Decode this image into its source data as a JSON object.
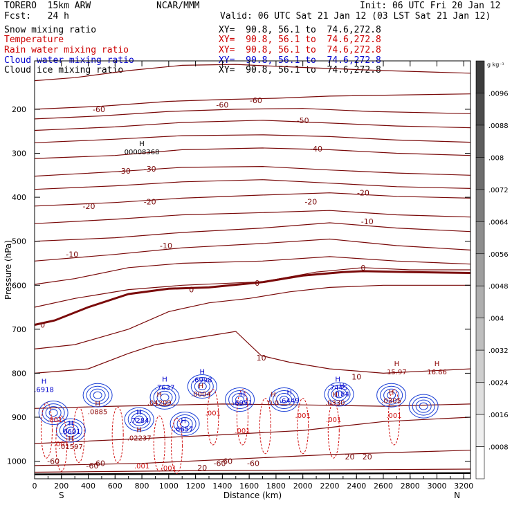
{
  "header": {
    "model": "TORERO  15km ARW",
    "center": "NCAR/MMM",
    "init": "Init: 06 UTC Fri 20 Jan 12",
    "fcst": "Fcst:   24 h",
    "valid": "Valid: 06 UTC Sat 21 Jan 12 (03 LST Sat 21 Jan 12)"
  },
  "fields": [
    {
      "name": "Snow mixing ratio",
      "xy": "",
      "color": "#000000"
    },
    {
      "name": "Temperature",
      "xy": "XY=  90.8, 56.1 to  74.6,272.8",
      "color": "#cc0000"
    },
    {
      "name": "Rain water mixing ratio",
      "xy": "XY=  90.8, 56.1 to  74.6,272.8",
      "color": "#cc0000"
    },
    {
      "name": "Cloud water mixing ratio",
      "xy": "XY=  90.8, 56.1 to  74.6,272.8",
      "color": "#0000cc"
    },
    {
      "name": "Cloud ice mixing ratio",
      "xy": "XY=  90.8, 56.1 to  74.6,272.8",
      "color": "#000000"
    }
  ],
  "first_xy": "XY=  90.8, 56.1 to  74.6,272.8",
  "chart_data": {
    "type": "contour cross-section",
    "xlabel": "Distance (km)",
    "ylabel": "Pressure (hPa)",
    "xlim": [
      0,
      3250
    ],
    "ylim": [
      1040,
      90
    ],
    "x_ticks": [
      "0",
      "200",
      "400",
      "600",
      "800",
      "1000",
      "1200",
      "1400",
      "1600",
      "1800",
      "2000",
      "2200",
      "2400",
      "2600",
      "2800",
      "3000",
      "3200"
    ],
    "y_ticks": [
      "200",
      "300",
      "400",
      "500",
      "600",
      "700",
      "800",
      "900",
      "1000"
    ],
    "end_labels": {
      "left": "S",
      "right": "N"
    },
    "colorbar": {
      "unit": "g kg⁻¹",
      "ticks": [
        ".0096",
        ".0088",
        ".008",
        ".0072",
        ".0064",
        ".0056",
        ".0048",
        ".004",
        ".0032",
        ".0024",
        ".0016",
        ".0008"
      ]
    },
    "temperature_labels": [
      {
        "x": 430,
        "p": 1010,
        "text": "-60"
      },
      {
        "x": 1380,
        "p": 1005,
        "text": "-60"
      },
      {
        "x": 1630,
        "p": 1005,
        "text": "-60"
      },
      {
        "x": 480,
        "p": 1005,
        "text": "-60"
      },
      {
        "x": 1430,
        "p": 1000,
        "text": "-60"
      },
      {
        "x": 140,
        "p": 1000,
        "text": "-60"
      },
      {
        "x": 480,
        "p": 200,
        "text": "-60"
      },
      {
        "x": 1400,
        "p": 190,
        "text": "-60"
      },
      {
        "x": 1650,
        "p": 180,
        "text": "-60"
      },
      {
        "x": 2000,
        "p": 225,
        "text": "-50"
      },
      {
        "x": 2100,
        "p": 290,
        "text": "-40"
      },
      {
        "x": 670,
        "p": 340,
        "text": "-30"
      },
      {
        "x": 860,
        "p": 335,
        "text": "-30"
      },
      {
        "x": 2450,
        "p": 390,
        "text": "-20"
      },
      {
        "x": 2060,
        "p": 410,
        "text": "-20"
      },
      {
        "x": 405,
        "p": 420,
        "text": "-20"
      },
      {
        "x": 860,
        "p": 410,
        "text": "-20"
      },
      {
        "x": 2480,
        "p": 455,
        "text": "-10"
      },
      {
        "x": 980,
        "p": 510,
        "text": "-10"
      },
      {
        "x": 280,
        "p": 530,
        "text": "-10"
      },
      {
        "x": 2450,
        "p": 560,
        "text": "0"
      },
      {
        "x": 1660,
        "p": 595,
        "text": "0"
      },
      {
        "x": 1170,
        "p": 610,
        "text": "0"
      },
      {
        "x": 60,
        "p": 690,
        "text": "0"
      },
      {
        "x": 1690,
        "p": 765,
        "text": "10"
      },
      {
        "x": 2400,
        "p": 808,
        "text": "10"
      },
      {
        "x": 2350,
        "p": 990,
        "text": "20"
      },
      {
        "x": 2480,
        "p": 990,
        "text": "20"
      },
      {
        "x": 1250,
        "p": 1015,
        "text": "20"
      }
    ],
    "extrema": [
      {
        "x": 800,
        "p": 290,
        "type": "H",
        "value": "00008368",
        "color": "#000000"
      },
      {
        "x": 2700,
        "p": 790,
        "type": "H",
        "value": "15.97",
        "color": "#8b0000"
      },
      {
        "x": 3000,
        "p": 790,
        "type": "H",
        "value": "16.66",
        "color": "#8b0000"
      },
      {
        "x": 70,
        "p": 830,
        "type": "H",
        "value": ".6918",
        "color": "#0000cc"
      },
      {
        "x": 970,
        "p": 825,
        "type": "H",
        "value": ".7637",
        "color": "#0000cc"
      },
      {
        "x": 1250,
        "p": 808,
        "type": "H",
        "value": ".6998",
        "color": "#0000cc"
      },
      {
        "x": 2260,
        "p": 825,
        "type": "H",
        "value": ".7445",
        "color": "#0000cc"
      },
      {
        "x": 1240,
        "p": 840,
        "type": "H",
        "value": ".0004",
        "color": "#8b0000"
      },
      {
        "x": 930,
        "p": 860,
        "type": "H",
        "value": ".04209",
        "color": "#8b0000"
      },
      {
        "x": 1550,
        "p": 860,
        "type": "H",
        "value": ".6951",
        "color": "#0000cc"
      },
      {
        "x": 1900,
        "p": 855,
        "type": "H",
        "value": ".6449",
        "color": "#0000cc"
      },
      {
        "x": 1780,
        "p": 860,
        "type": "H",
        "value": "0.0",
        "color": "#8b0000"
      },
      {
        "x": 2240,
        "p": 860,
        "type": "H",
        "value": ".0330",
        "color": "#8b0000"
      },
      {
        "x": 2290,
        "p": 840,
        "type": "H",
        "value": ".184",
        "color": "#0000cc"
      },
      {
        "x": 2660,
        "p": 855,
        "type": "H",
        "value": ".0305",
        "color": "#8b0000"
      },
      {
        "x": 470,
        "p": 880,
        "type": "H",
        "value": ".0885",
        "color": "#8b0000"
      },
      {
        "x": 780,
        "p": 900,
        "type": "H",
        "value": ".7284",
        "color": "#0000cc"
      },
      {
        "x": 270,
        "p": 925,
        "type": "H",
        "value": ".6601",
        "color": "#0000cc"
      },
      {
        "x": 1110,
        "p": 920,
        "type": "H",
        "value": ".6657",
        "color": "#0000cc"
      },
      {
        "x": 780,
        "p": 940,
        "type": "H",
        "value": ".02237",
        "color": "#8b0000"
      },
      {
        "x": 270,
        "p": 960,
        "type": "H",
        "value": ".01597",
        "color": "#8b0000"
      }
    ],
    "rain_labels": [
      {
        "x": 150,
        "p": 905,
        "text": ".001"
      },
      {
        "x": 1330,
        "p": 890,
        "text": ".001"
      },
      {
        "x": 1550,
        "p": 930,
        "text": ".001"
      },
      {
        "x": 2000,
        "p": 895,
        "text": ".001"
      },
      {
        "x": 2230,
        "p": 905,
        "text": ".001"
      },
      {
        "x": 2680,
        "p": 895,
        "text": ".001"
      },
      {
        "x": 800,
        "p": 1010,
        "text": ".001"
      },
      {
        "x": 1000,
        "p": 1015,
        "text": ".001"
      },
      {
        "x": 200,
        "p": 960,
        "text": ".001"
      }
    ]
  }
}
